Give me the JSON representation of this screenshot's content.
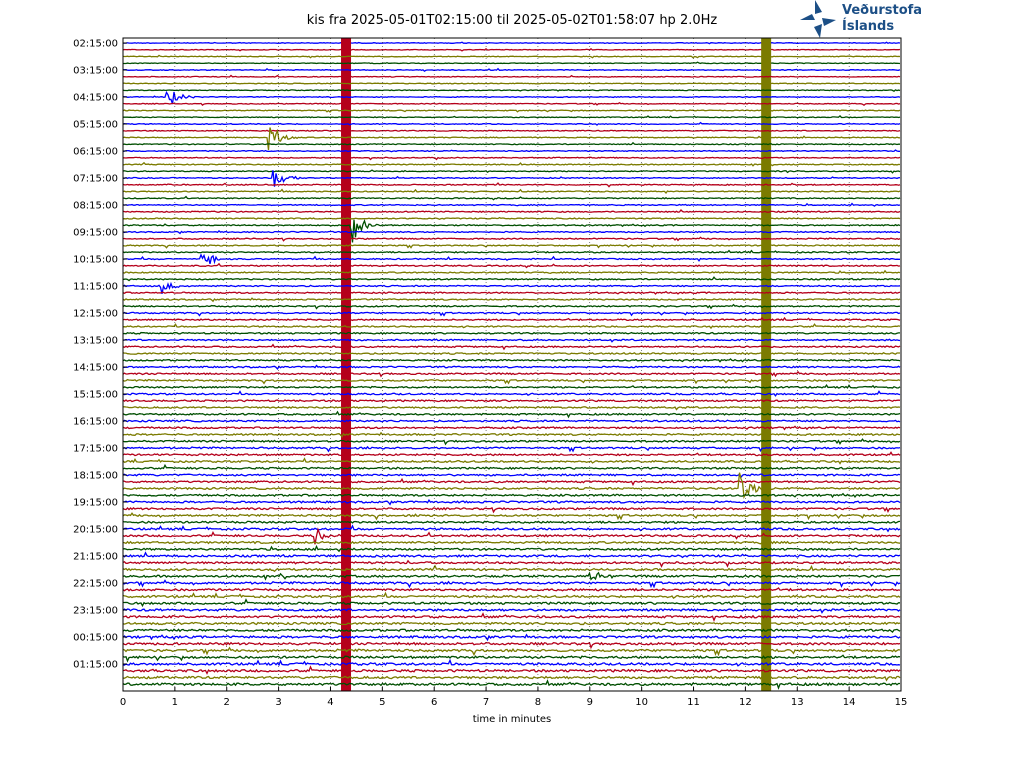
{
  "chart_data": {
    "type": "line",
    "title": "kis fra 2025-05-01T02:15:00 til 2025-05-02T01:58:07 hp 2.0Hz",
    "xlabel": "time in minutes",
    "ylabel": "",
    "xlim": [
      0,
      15
    ],
    "x_ticks": [
      "0",
      "1",
      "2",
      "3",
      "4",
      "5",
      "6",
      "7",
      "8",
      "9",
      "10",
      "11",
      "12",
      "13",
      "14",
      "15"
    ],
    "y_tick_labels": [
      "02:15:00",
      "03:15:00",
      "04:15:00",
      "05:15:00",
      "06:15:00",
      "07:15:00",
      "08:15:00",
      "09:15:00",
      "10:15:00",
      "11:15:00",
      "12:15:00",
      "13:15:00",
      "14:15:00",
      "15:15:00",
      "16:15:00",
      "17:15:00",
      "18:15:00",
      "19:15:00",
      "20:15:00",
      "21:15:00",
      "22:15:00",
      "23:15:00",
      "00:15:00",
      "01:15:00"
    ],
    "trace_colors": [
      "#0000ff",
      "#b5001b",
      "#7b7b00",
      "#004f00"
    ],
    "traces_per_label": 4,
    "trace_count": 96,
    "grid": true,
    "events": [
      {
        "trace": 0,
        "minute": 4.3,
        "amplitude": 1.0,
        "color_override": "#b5001b",
        "kind": "saturated"
      },
      {
        "trace": 4,
        "minute": 12.4,
        "amplitude": 1.0,
        "color_override": "#7b7b00",
        "kind": "saturated"
      },
      {
        "trace": 8,
        "minute": 0.85,
        "amplitude": 0.6
      },
      {
        "trace": 14,
        "minute": 2.8,
        "amplitude": 0.9
      },
      {
        "trace": 20,
        "minute": 2.9,
        "amplitude": 0.7
      },
      {
        "trace": 27,
        "minute": 4.4,
        "amplitude": 0.9
      },
      {
        "trace": 32,
        "minute": 1.5,
        "amplitude": 0.6
      },
      {
        "trace": 36,
        "minute": 0.7,
        "amplitude": 0.5
      },
      {
        "trace": 66,
        "minute": 11.9,
        "amplitude": 0.8
      },
      {
        "trace": 73,
        "minute": 3.7,
        "amplitude": 0.4
      },
      {
        "trace": 79,
        "minute": 9.0,
        "amplitude": 0.4
      }
    ]
  },
  "logo": {
    "line1": "Veðurstofa",
    "line2": "Íslands"
  }
}
